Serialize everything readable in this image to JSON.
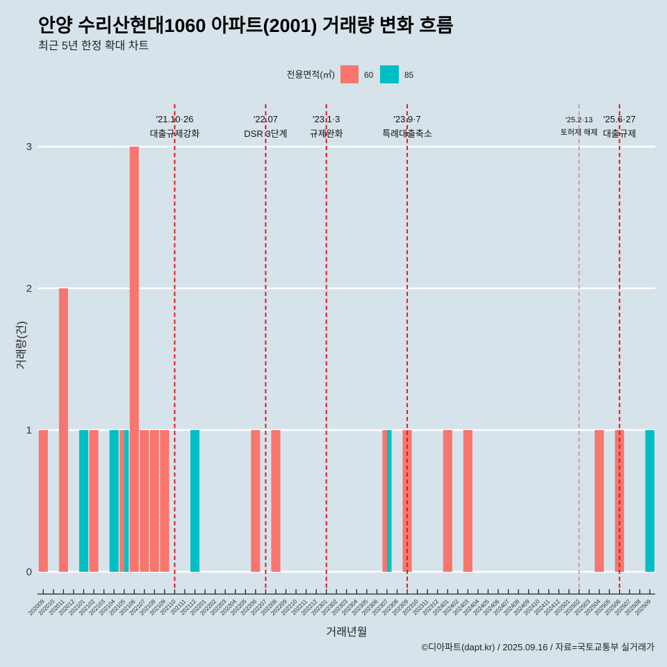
{
  "chart_data": {
    "type": "bar",
    "title": "안양 수리산현대1060 아파트(2001) 거래량 변화 흐름",
    "subtitle": "최근 5년 한정 확대 차트",
    "xlabel": "거래년월",
    "ylabel": "거래량(건)",
    "caption": "©디아파트(dapt.kr) / 2025.09.16 / 자료=국토교통부 실거래가",
    "ylim": [
      0,
      3
    ],
    "yticks": [
      0,
      1,
      2,
      3
    ],
    "grid": "horizontal-major",
    "legend": {
      "title": "전용면적(㎡)",
      "position": "top"
    },
    "categories": [
      "202009",
      "202010",
      "202011",
      "202012",
      "202101",
      "202102",
      "202103",
      "202104",
      "202105",
      "202106",
      "202107",
      "202108",
      "202109",
      "202110",
      "202111",
      "202112",
      "202201",
      "202202",
      "202203",
      "202204",
      "202205",
      "202206",
      "202207",
      "202208",
      "202209",
      "202210",
      "202211",
      "202212",
      "202301",
      "202302",
      "202303",
      "202304",
      "202305",
      "202306",
      "202307",
      "202308",
      "202309",
      "202310",
      "202311",
      "202312",
      "202401",
      "202402",
      "202403",
      "202404",
      "202405",
      "202406",
      "202407",
      "202408",
      "202409",
      "202410",
      "202411",
      "202412",
      "202501",
      "202502",
      "202503",
      "202504",
      "202505",
      "202506",
      "202507",
      "202508",
      "202509"
    ],
    "series": [
      {
        "name": "60",
        "color": "#F8766D",
        "values": [
          1,
          0,
          2,
          0,
          0,
          1,
          0,
          0,
          1,
          3,
          1,
          1,
          1,
          0,
          0,
          0,
          0,
          0,
          0,
          0,
          0,
          1,
          0,
          1,
          0,
          0,
          0,
          0,
          0,
          0,
          0,
          0,
          0,
          0,
          1,
          0,
          1,
          0,
          0,
          0,
          1,
          0,
          1,
          0,
          0,
          0,
          0,
          0,
          0,
          0,
          0,
          0,
          0,
          0,
          0,
          1,
          0,
          1,
          0,
          0,
          0
        ]
      },
      {
        "name": "85",
        "color": "#00BFC4",
        "values": [
          0,
          0,
          0,
          0,
          1,
          0,
          0,
          1,
          1,
          0,
          0,
          0,
          0,
          0,
          0,
          1,
          0,
          0,
          0,
          0,
          0,
          0,
          0,
          0,
          0,
          0,
          0,
          0,
          0,
          0,
          0,
          0,
          0,
          0,
          1,
          0,
          0,
          0,
          0,
          0,
          0,
          0,
          0,
          0,
          0,
          0,
          0,
          0,
          0,
          0,
          0,
          0,
          0,
          0,
          0,
          0,
          0,
          0,
          0,
          0,
          1
        ]
      }
    ],
    "annotations": [
      {
        "category": "202110",
        "date": "'21.10·26",
        "label": "대출규제강화",
        "emphasis": "major"
      },
      {
        "category": "202207",
        "date": "'22.07",
        "label": "DSR 3단계",
        "emphasis": "major"
      },
      {
        "category": "202301",
        "date": "'23.1·3",
        "label": "규제완화",
        "emphasis": "major"
      },
      {
        "category": "202309",
        "date": "'23.9·7",
        "label": "특례대출축소",
        "emphasis": "major"
      },
      {
        "category": "202502",
        "date": "'25.2·13",
        "label": "토허제 해제",
        "emphasis": "minor"
      },
      {
        "category": "202506",
        "date": "'25.6·27",
        "label": "대출규제",
        "emphasis": "major"
      }
    ],
    "annotation_line_color": "#E8141B"
  }
}
